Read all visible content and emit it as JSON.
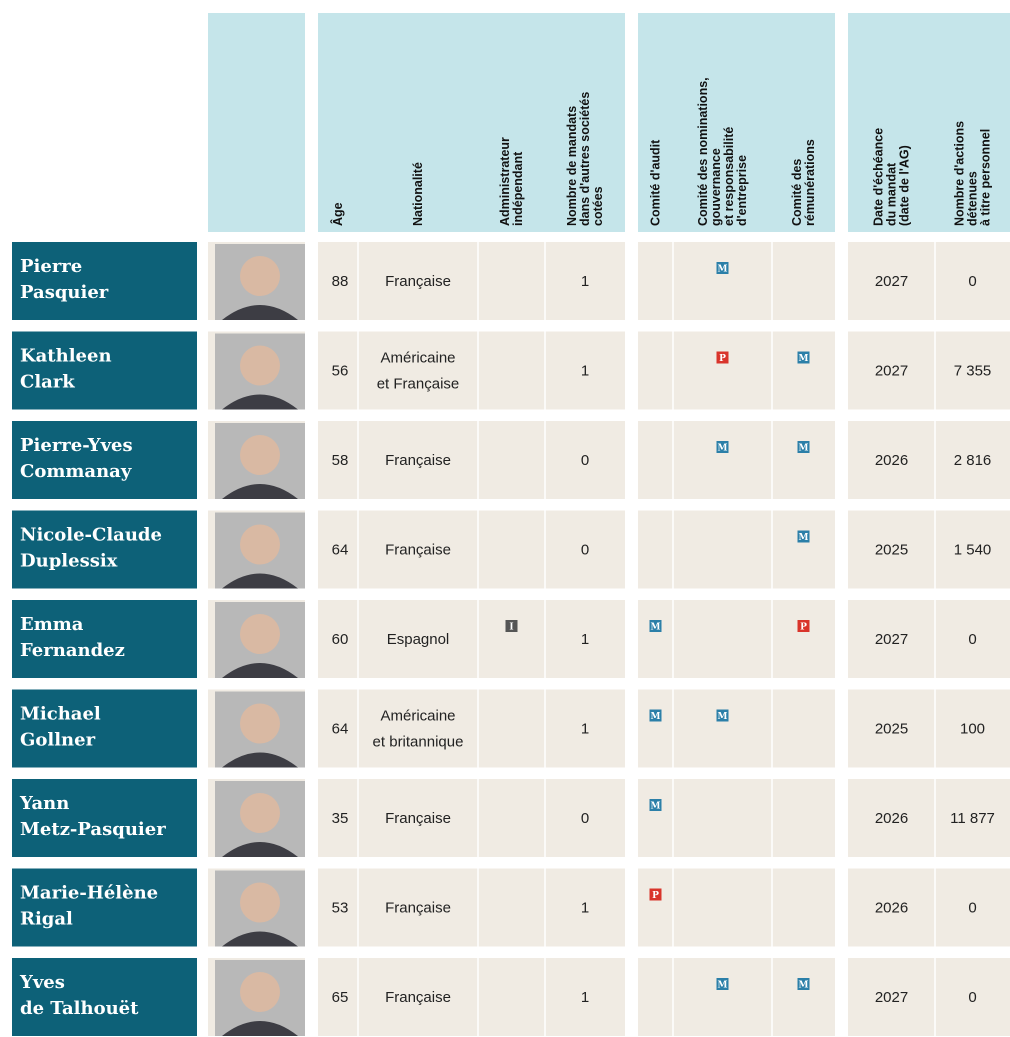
{
  "header": {
    "columns": [
      [
        "Âge"
      ],
      [
        "Nationalité"
      ],
      [
        "Administrateur",
        "indépendant"
      ],
      [
        "Nombre de mandats",
        "dans d'autres sociétés",
        "cotées"
      ],
      [
        "Comité d'audit"
      ],
      [
        "Comité des nominations,",
        "gouvernance",
        "et responsabilité",
        "d'entreprise"
      ],
      [
        "Comité des",
        "rémunérations"
      ],
      [
        "Date d'échéance",
        "du mandat",
        "(date de l'AG)"
      ],
      [
        "Nombre d'actions",
        "détenues",
        "à titre personnel"
      ]
    ]
  },
  "table": {
    "rows": [
      {
        "name": [
          "Pierre",
          "Pasquier"
        ],
        "age": 88,
        "nationality": [
          "Française"
        ],
        "mandates": 1,
        "nominations": "M",
        "term": 2027,
        "shares": "0"
      },
      {
        "name": [
          "Kathleen",
          "Clark"
        ],
        "age": 56,
        "nationality": [
          "Américaine",
          "et Française"
        ],
        "mandates": 1,
        "nominations": "P",
        "remunerations": "M",
        "term": 2027,
        "shares": "7 355"
      },
      {
        "name": [
          "Pierre-Yves",
          "Commanay"
        ],
        "age": 58,
        "nationality": [
          "Française"
        ],
        "mandates": 0,
        "nominations": "M",
        "remunerations": "M",
        "term": 2026,
        "shares": "2 816"
      },
      {
        "name": [
          "Nicole-Claude",
          "Duplessix"
        ],
        "age": 64,
        "nationality": [
          "Française"
        ],
        "mandates": 0,
        "remunerations": "M",
        "term": 2025,
        "shares": "1 540"
      },
      {
        "name": [
          "Emma",
          "Fernandez"
        ],
        "age": 60,
        "nationality": [
          "Espagnol"
        ],
        "independent": "I",
        "mandates": 1,
        "audit": "M",
        "remunerations": "P",
        "term": 2027,
        "shares": "0"
      },
      {
        "name": [
          "Michael",
          "Gollner"
        ],
        "age": 64,
        "nationality": [
          "Américaine",
          "et britannique"
        ],
        "mandates": 1,
        "audit": "M",
        "nominations": "M",
        "term": 2025,
        "shares": "100"
      },
      {
        "name": [
          "Yann",
          "Metz-Pasquier"
        ],
        "age": 35,
        "nationality": [
          "Française"
        ],
        "mandates": 0,
        "audit": "M",
        "term": 2026,
        "shares": "11 877"
      },
      {
        "name": [
          "Marie-Hélène",
          "Rigal"
        ],
        "age": 53,
        "nationality": [
          "Française"
        ],
        "mandates": 1,
        "audit": "P",
        "term": 2026,
        "shares": "0"
      },
      {
        "name": [
          "Yves",
          "de Talhouët"
        ],
        "age": 65,
        "nationality": [
          "Française"
        ],
        "mandates": 1,
        "nominations": "M",
        "remunerations": "M",
        "term": 2027,
        "shares": "0"
      }
    ]
  }
}
